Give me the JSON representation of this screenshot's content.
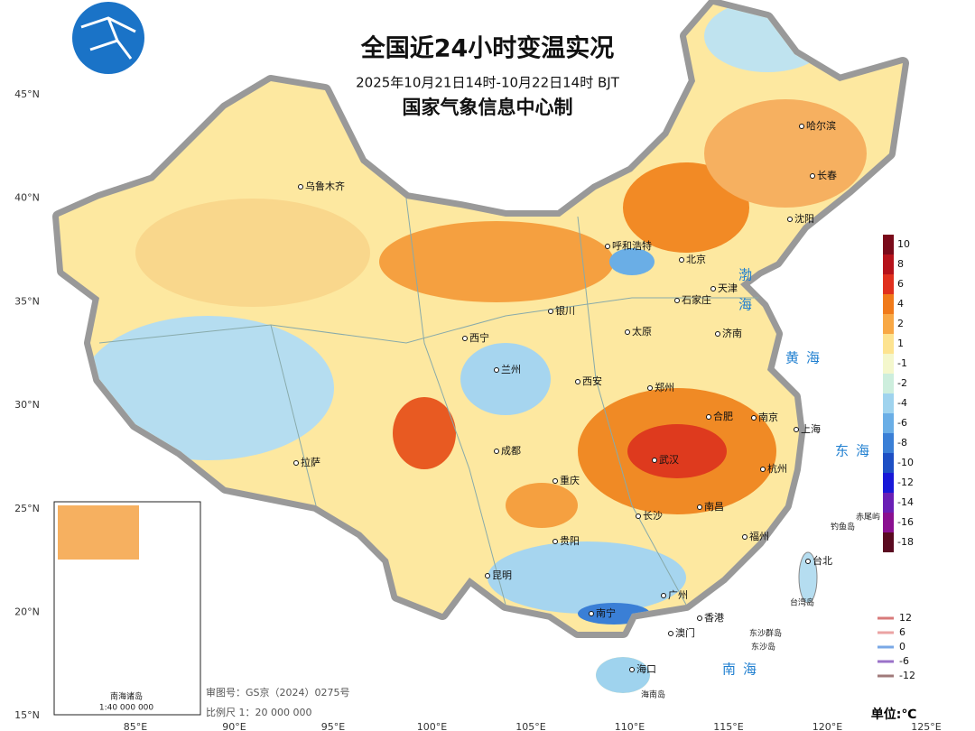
{
  "header": {
    "title": "全国近24小时变温实况",
    "subtitle": "2025年10月21日14时-10月22日14时 BJT",
    "agency": "国家气象信息中心制"
  },
  "cities": [
    "乌鲁木齐",
    "哈尔滨",
    "长春",
    "沈阳",
    "呼和浩特",
    "北京",
    "天津",
    "石家庄",
    "银川",
    "太原",
    "济南",
    "西宁",
    "兰州",
    "西安",
    "郑州",
    "合肥",
    "南京",
    "上海",
    "拉萨",
    "成都",
    "武汉",
    "杭州",
    "重庆",
    "长沙",
    "南昌",
    "贵阳",
    "福州",
    "台北",
    "昆明",
    "广州",
    "南宁",
    "香港",
    "澳门",
    "海口"
  ],
  "islands": [
    "钓鱼岛",
    "赤尾屿",
    "台湾岛",
    "东沙群岛",
    "东沙岛",
    "海南岛"
  ],
  "seas": [
    "渤",
    "海",
    "黄海",
    "东海",
    "南海"
  ],
  "latitudes": [
    "45°N",
    "40°N",
    "35°N",
    "30°N",
    "25°N",
    "20°N",
    "15°N"
  ],
  "longitudes": [
    "85°E",
    "90°E",
    "95°E",
    "100°E",
    "105°E",
    "110°E",
    "115°E",
    "120°E",
    "125°E"
  ],
  "legend": {
    "colors": [
      {
        "label": "10",
        "color": "#7a0a1a"
      },
      {
        "label": "8",
        "color": "#b5121b"
      },
      {
        "label": "6",
        "color": "#e0301e"
      },
      {
        "label": "4",
        "color": "#f07a1a"
      },
      {
        "label": "2",
        "color": "#f8a845"
      },
      {
        "label": "1",
        "color": "#fde390"
      },
      {
        "label": "-1",
        "color": "#f4f7cc"
      },
      {
        "label": "-2",
        "color": "#cdeedd"
      },
      {
        "label": "-4",
        "color": "#9fd3ee"
      },
      {
        "label": "-6",
        "color": "#6aaee6"
      },
      {
        "label": "-8",
        "color": "#3a7fd6"
      },
      {
        "label": "-10",
        "color": "#1d4fc4"
      },
      {
        "label": "-12",
        "color": "#1818d8"
      },
      {
        "label": "-14",
        "color": "#6a1fb5"
      },
      {
        "label": "-16",
        "color": "#8a1090"
      },
      {
        "label": "-18",
        "color": "#5a0a20"
      }
    ],
    "lines": [
      {
        "label": "12",
        "color": "#d87a7a"
      },
      {
        "label": "6",
        "color": "#eba3a3"
      },
      {
        "label": "0",
        "color": "#7aa8e6"
      },
      {
        "label": "-6",
        "color": "#9a72c8"
      },
      {
        "label": "-12",
        "color": "#a07a7a"
      }
    ],
    "unit": "单位:℃"
  },
  "inset": {
    "title": "南海诸岛",
    "scale": "1:40 000 000"
  },
  "footer": {
    "review": "审图号：GS京（2024）0275号",
    "scale": "比例尺 1：20 000 000"
  }
}
